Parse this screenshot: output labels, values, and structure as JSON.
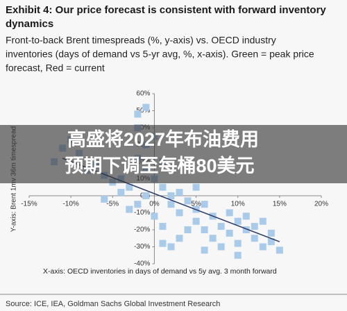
{
  "chart_data": {
    "type": "scatter",
    "title": "Exhibit 4: Our price forecast is consistent with forward inventory dynamics",
    "subtitle": [
      "Front-to-back Brent timespreads (%, y-axis) vs. OECD industry",
      "inventories (days of demand vs 5-yr avg, %, x-axis). Green = peak price",
      "forecast, Red = current"
    ],
    "ylabel": "Y-axis: Brent 1mv 36m timespread",
    "xlabel": "X-axis: OECD inventories in days of demand vs 5y avg. 3 month forward",
    "color": "#a9cbe9",
    "x": [
      -11,
      -10,
      -9,
      -12,
      -8,
      -7,
      -6,
      -5,
      -4,
      -3,
      -2,
      -1,
      -2,
      -1,
      0,
      1,
      -1,
      0,
      1,
      2,
      3,
      2,
      4,
      3,
      5,
      6,
      5,
      7,
      6,
      8,
      7,
      9,
      10,
      10,
      11,
      12,
      13,
      12,
      14,
      15,
      14,
      9,
      8,
      4,
      3,
      2,
      1,
      0,
      -2,
      -3,
      -4,
      -6,
      11,
      13,
      5,
      -1,
      1,
      6,
      10,
      -2
    ],
    "y": [
      28,
      33,
      25,
      20,
      15,
      18,
      12,
      8,
      10,
      5,
      48,
      52,
      40,
      30,
      35,
      20,
      15,
      10,
      5,
      0,
      2,
      -5,
      -3,
      -10,
      -8,
      -5,
      -15,
      -12,
      -20,
      -18,
      -25,
      -22,
      -15,
      -28,
      -20,
      -25,
      -30,
      -18,
      -27,
      -32,
      -22,
      -10,
      -30,
      -20,
      -25,
      -30,
      -18,
      -12,
      -5,
      -8,
      2,
      -2,
      -12,
      -15,
      5,
      0,
      -28,
      -32,
      -35,
      22
    ],
    "trendline": {
      "x": [
        -11,
        15
      ],
      "y": [
        22,
        -27
      ]
    },
    "trendline_color": "#2b3a67",
    "xlim": [
      -15,
      20
    ],
    "ylim": [
      -40,
      60
    ],
    "xticks": [
      {
        "value": -15,
        "label": "-15%"
      },
      {
        "value": -10,
        "label": "-10%"
      },
      {
        "value": -5,
        "label": "-5%"
      },
      {
        "value": 0,
        "label": "0%"
      },
      {
        "value": 5,
        "label": "5%"
      },
      {
        "value": 10,
        "label": "10%"
      },
      {
        "value": 15,
        "label": "15%"
      },
      {
        "value": 20,
        "label": "20%"
      }
    ],
    "yticks": [
      {
        "value": -40,
        "label": "-40%"
      },
      {
        "value": -30,
        "label": "-30%"
      },
      {
        "value": -20,
        "label": "-20%"
      },
      {
        "value": -10,
        "label": "-10%"
      },
      {
        "value": 0,
        "label": "0%"
      },
      {
        "value": 10,
        "label": "10%"
      },
      {
        "value": 20,
        "label": "20%"
      },
      {
        "value": 30,
        "label": "30%"
      },
      {
        "value": 40,
        "label": "40%"
      },
      {
        "value": 50,
        "label": "50%"
      },
      {
        "value": 60,
        "label": "60%"
      }
    ]
  },
  "overlay_text": [
    "高盛将2027年布油费用",
    "预期下调至每桶80美元"
  ],
  "source": "Source: ICE, IEA, Goldman Sachs Global Investment Research"
}
